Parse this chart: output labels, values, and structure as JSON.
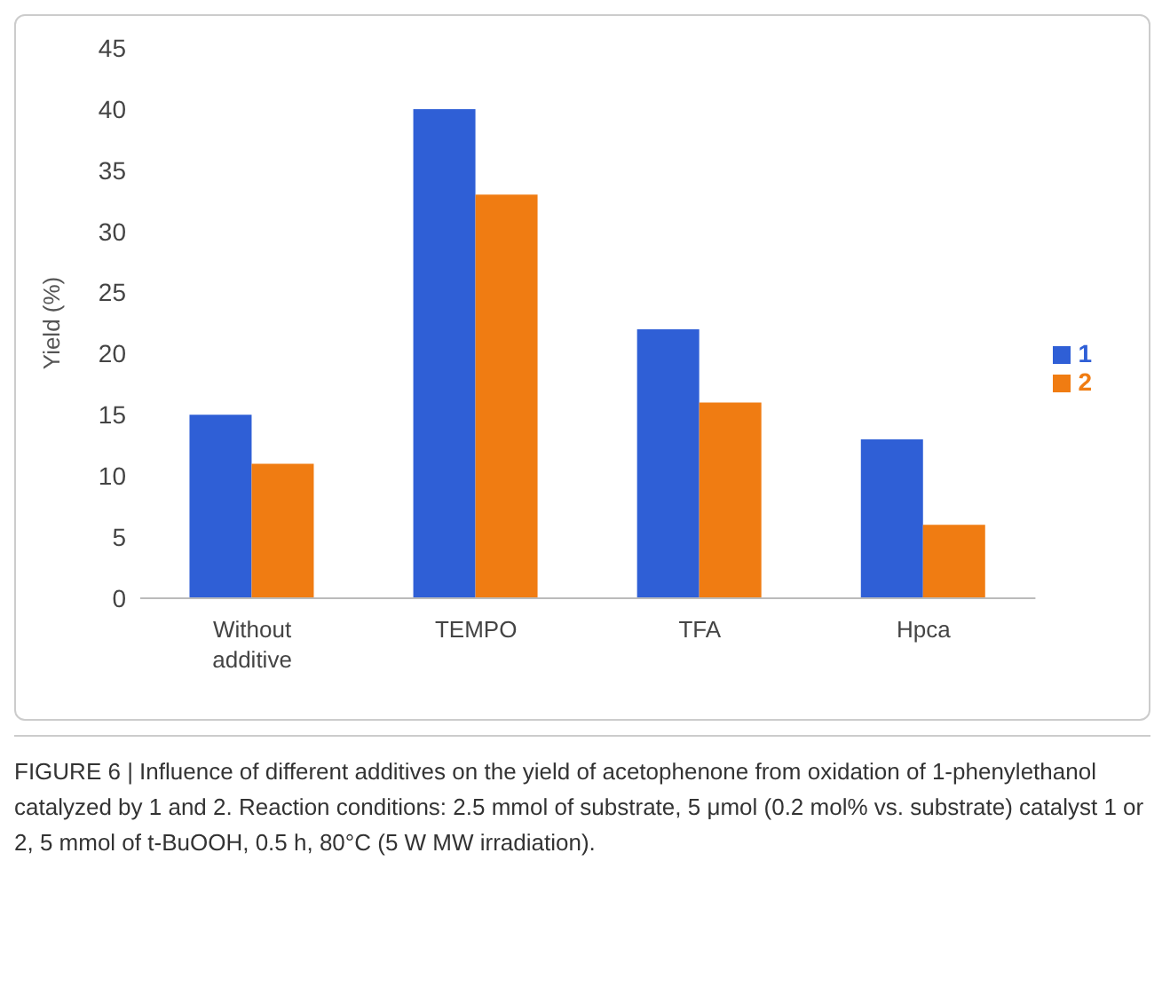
{
  "chart_data": {
    "type": "bar",
    "ylabel": "Yield (%)",
    "categories": [
      "Without additive",
      "TEMPO",
      "TFA",
      "Hpca"
    ],
    "series": [
      {
        "name": "1",
        "color": "#2f5fd6",
        "values": [
          15,
          40,
          22,
          13
        ]
      },
      {
        "name": "2",
        "color": "#f07c12",
        "values": [
          11,
          33,
          16,
          6
        ]
      }
    ],
    "ylim": [
      0,
      45
    ],
    "yticks": [
      0,
      5,
      10,
      15,
      20,
      25,
      30,
      35,
      40,
      45
    ],
    "grid": false,
    "legend": "right",
    "annotations": [
      "FIGURE 6 | Influence of different additives on the yield of acetophenone from oxidation of 1-phenylethanol catalyzed by 1 and 2. Reaction conditions: 2.5 mmol of substrate, 5 μmol (0.2 mol% vs. substrate) catalyst 1 or 2, 5 mmol of t-BuOOH, 0.5 h, 80°C (5 W MW irradiation)."
    ]
  }
}
